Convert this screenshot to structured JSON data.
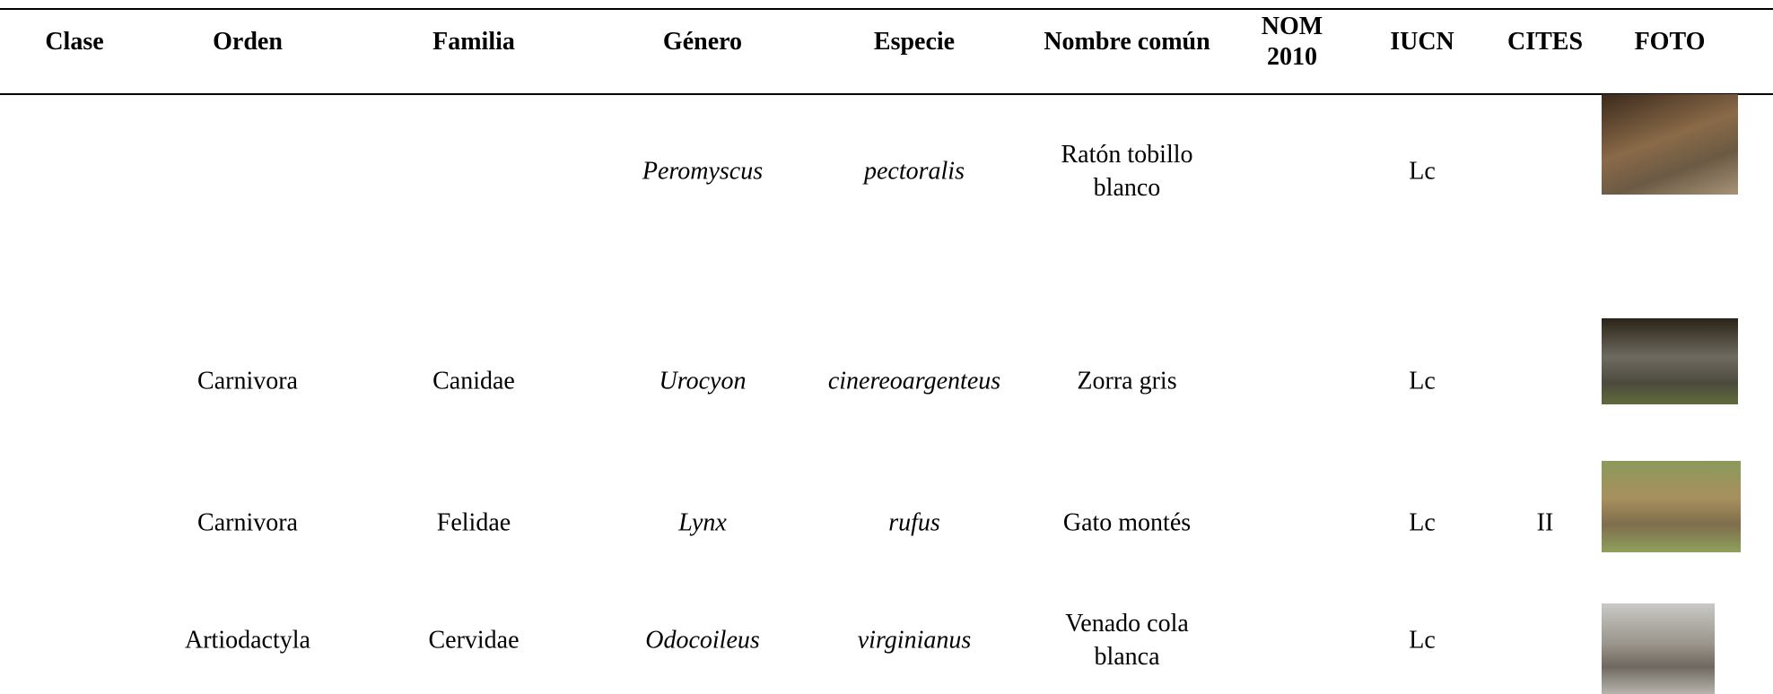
{
  "table": {
    "header": {
      "clase": "Clase",
      "orden": "Orden",
      "familia": "Familia",
      "genero": "Género",
      "especie": "Especie",
      "nombre_comun": "Nombre común",
      "nom": "NOM 2010",
      "iucn": "IUCN",
      "cites": "CITES",
      "foto": "FOTO"
    },
    "rows": [
      {
        "genero": "Peromyscus",
        "especie": "pectoralis",
        "nombre_comun": "Ratón tobillo blanco",
        "iucn": "Lc"
      },
      {
        "orden": "Carnivora",
        "familia": "Canidae",
        "genero": "Urocyon",
        "especie": "cinereoargenteus",
        "nombre_comun": "Zorra gris",
        "iucn": "Lc"
      },
      {
        "orden": "Carnivora",
        "familia": "Felidae",
        "genero": "Lynx",
        "especie": "rufus",
        "nombre_comun": "Gato montés",
        "iucn": "Lc",
        "cites": "II"
      },
      {
        "orden": "Artiodactyla",
        "familia": "Cervidae",
        "genero": "Odocoileus",
        "especie": "virginianus",
        "nombre_comun": "Venado cola blanca",
        "iucn": "Lc"
      }
    ]
  }
}
